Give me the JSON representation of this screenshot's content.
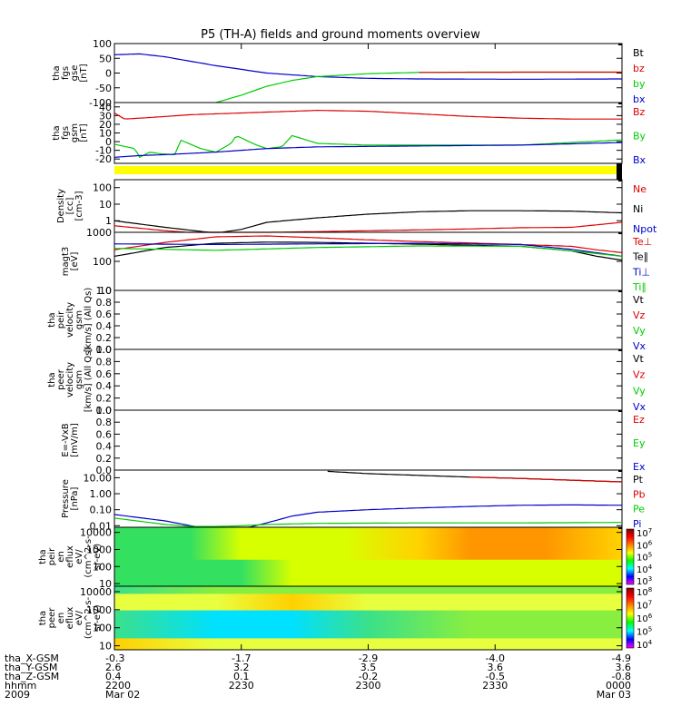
{
  "title": "P5 (TH-A) fields and ground moments overview",
  "colors": {
    "black": "#000000",
    "red": "#dd0000",
    "green": "#00cc00",
    "blue": "#0000cc",
    "yellow_bar": "#ffff00"
  },
  "chart_data": [
    {
      "id": "fgs_gse",
      "type": "line",
      "ylabel": [
        "tha",
        "fgs",
        "gse",
        "[nT]"
      ],
      "yticks": [
        "100",
        "50",
        "0",
        "-50",
        "-100"
      ],
      "ylim": [
        -100,
        100
      ],
      "log": false,
      "legend": [
        {
          "name": "Bt",
          "color": "#000000"
        },
        {
          "name": "bz",
          "color": "#dd0000"
        },
        {
          "name": "by",
          "color": "#00cc00"
        },
        {
          "name": "bx",
          "color": "#0000cc"
        }
      ],
      "series": [
        {
          "name": "bx",
          "color": "#0000cc",
          "x": [
            0,
            0.05,
            0.1,
            0.2,
            0.3,
            0.4,
            0.5,
            0.6,
            0.8,
            1.0
          ],
          "y": [
            62,
            65,
            55,
            25,
            0,
            -12,
            -18,
            -20,
            -21,
            -20
          ]
        },
        {
          "name": "by",
          "color": "#00cc00",
          "x": [
            0.2,
            0.25,
            0.3,
            0.35,
            0.4,
            0.5,
            0.6,
            0.7,
            0.8,
            1.0
          ],
          "y": [
            -100,
            -75,
            -45,
            -25,
            -12,
            -2,
            2,
            3,
            3,
            3
          ]
        },
        {
          "name": "bz",
          "color": "#dd0000",
          "x": [
            0.6,
            0.8,
            1.0
          ],
          "y": [
            2,
            3,
            3
          ]
        }
      ]
    },
    {
      "id": "fgs_gsm",
      "type": "line",
      "ylabel": [
        "tha",
        "fgs",
        "gsm",
        "[nT]"
      ],
      "yticks": [
        "40",
        "30",
        "20",
        "10",
        "0",
        "-10",
        "-20"
      ],
      "ylim": [
        -25,
        45
      ],
      "log": false,
      "legend": [
        {
          "name": "Bz",
          "color": "#dd0000"
        },
        {
          "name": "By",
          "color": "#00cc00"
        },
        {
          "name": "Bx",
          "color": "#0000cc"
        }
      ],
      "series": [
        {
          "name": "Bz",
          "color": "#dd0000",
          "x": [
            0,
            0.02,
            0.05,
            0.15,
            0.3,
            0.4,
            0.5,
            0.6,
            0.7,
            0.8,
            0.9,
            1.0
          ],
          "y": [
            33,
            26,
            27,
            31,
            34,
            36,
            35,
            32,
            29,
            27,
            26,
            26
          ]
        },
        {
          "name": "By",
          "color": "#00cc00",
          "x": [
            0,
            0.04,
            0.05,
            0.07,
            0.09,
            0.12,
            0.13,
            0.17,
            0.2,
            0.23,
            0.24,
            0.28,
            0.3,
            0.33,
            0.35,
            0.4,
            0.5,
            0.6,
            0.8,
            1.0
          ],
          "y": [
            -3,
            -8,
            -18,
            -12,
            -14,
            -15,
            2,
            -8,
            -12,
            -2,
            7,
            -4,
            -8,
            -6,
            7,
            -2,
            -4,
            -4,
            -4,
            2
          ]
        },
        {
          "name": "Bx",
          "color": "#0000cc",
          "x": [
            0,
            0.05,
            0.1,
            0.2,
            0.3,
            0.4,
            0.6,
            0.8,
            1.0
          ],
          "y": [
            -18,
            -16,
            -15,
            -12,
            -8,
            -6,
            -5,
            -4,
            -1
          ]
        }
      ]
    },
    {
      "id": "density",
      "type": "line",
      "ylabel": [
        "Density",
        "[cc]",
        "[cm-3]"
      ],
      "yticks": [
        "100",
        "10",
        "1"
      ],
      "ylim": [
        0.2,
        300
      ],
      "log": true,
      "legend": [
        {
          "name": "Ne",
          "color": "#dd0000"
        },
        {
          "name": "Ni",
          "color": "#000000"
        },
        {
          "name": "Npot",
          "color": "#0000cc"
        }
      ],
      "series": [
        {
          "name": "Ni",
          "color": "#000000",
          "x": [
            0,
            0.1,
            0.2,
            0.25,
            0.3,
            0.4,
            0.5,
            0.6,
            0.7,
            0.8,
            0.9,
            1.0
          ],
          "y": [
            1.0,
            0.4,
            0.18,
            0.3,
            0.8,
            1.5,
            2.5,
            3.5,
            4.0,
            4.0,
            3.8,
            3.0
          ]
        },
        {
          "name": "Ne",
          "color": "#dd0000",
          "x": [
            0,
            0.1,
            0.2,
            0.25,
            0.3,
            0.4,
            0.5,
            0.6,
            0.7,
            0.8,
            0.9,
            1.0
          ],
          "y": [
            0.5,
            0.25,
            0.15,
            0.18,
            0.2,
            0.22,
            0.25,
            0.28,
            0.32,
            0.38,
            0.4,
            0.8
          ]
        }
      ]
    },
    {
      "id": "magt3",
      "type": "line",
      "ylabel": [
        "magt3",
        "[eV]"
      ],
      "yticks": [
        "1000",
        "100",
        "10"
      ],
      "ylim": [
        10,
        1000
      ],
      "log": true,
      "legend": [
        {
          "name": "Te⊥",
          "color": "#dd0000"
        },
        {
          "name": "Te∥",
          "color": "#000000"
        },
        {
          "name": "Ti⊥",
          "color": "#0000cc"
        },
        {
          "name": "Ti∥",
          "color": "#00cc00"
        }
      ],
      "series": [
        {
          "name": "Te⊥",
          "color": "#dd0000",
          "x": [
            0,
            0.1,
            0.2,
            0.3,
            0.4,
            0.5,
            0.6,
            0.7,
            0.8,
            0.9,
            0.95,
            1.0
          ],
          "y": [
            250,
            450,
            700,
            750,
            650,
            550,
            480,
            430,
            380,
            330,
            250,
            200
          ]
        },
        {
          "name": "Te∥",
          "color": "#000000",
          "x": [
            0,
            0.1,
            0.2,
            0.3,
            0.4,
            0.5,
            0.6,
            0.7,
            0.8,
            0.9,
            0.95,
            1.0
          ],
          "y": [
            150,
            300,
            420,
            460,
            450,
            420,
            390,
            360,
            330,
            230,
            150,
            110
          ]
        },
        {
          "name": "Ti⊥",
          "color": "#0000cc",
          "x": [
            0,
            0.2,
            0.4,
            0.6,
            0.8,
            0.9,
            1.0
          ],
          "y": [
            400,
            380,
            400,
            420,
            380,
            260,
            150
          ]
        },
        {
          "name": "Ti∥",
          "color": "#00cc00",
          "x": [
            0,
            0.2,
            0.4,
            0.6,
            0.8,
            0.9,
            1.0
          ],
          "y": [
            280,
            240,
            300,
            340,
            330,
            230,
            150
          ]
        }
      ]
    },
    {
      "id": "peir_velocity",
      "type": "line",
      "ylabel": [
        "tha",
        "peir",
        "velocity",
        "gsm",
        "[km/s] (All Qs)"
      ],
      "yticks": [
        "1.0",
        "0.8",
        "0.6",
        "0.4",
        "0.2",
        "0.0"
      ],
      "ylim": [
        0,
        1
      ],
      "log": false,
      "legend": [
        {
          "name": "Vt",
          "color": "#000000"
        },
        {
          "name": "Vz",
          "color": "#dd0000"
        },
        {
          "name": "Vy",
          "color": "#00cc00"
        },
        {
          "name": "Vx",
          "color": "#0000cc"
        }
      ],
      "series": []
    },
    {
      "id": "peer_velocity",
      "type": "line",
      "ylabel": [
        "tha",
        "peer",
        "velocity",
        "gsm",
        "[km/s] (All Qs)"
      ],
      "yticks": [
        "1.0",
        "0.8",
        "0.6",
        "0.4",
        "0.2",
        "0.0"
      ],
      "ylim": [
        0,
        1
      ],
      "log": false,
      "legend": [
        {
          "name": "Vt",
          "color": "#000000"
        },
        {
          "name": "Vz",
          "color": "#dd0000"
        },
        {
          "name": "Vy",
          "color": "#00cc00"
        },
        {
          "name": "Vx",
          "color": "#0000cc"
        }
      ],
      "series": []
    },
    {
      "id": "efield",
      "type": "line",
      "ylabel": [
        "E=-VxB",
        "[mV/m]"
      ],
      "yticks": [
        "1.0",
        "0.8",
        "0.6",
        "0.4",
        "0.2",
        "0.0"
      ],
      "ylim": [
        0,
        1
      ],
      "log": false,
      "legend": [
        {
          "name": "Ez",
          "color": "#dd0000"
        },
        {
          "name": "Ey",
          "color": "#00cc00"
        },
        {
          "name": "Ex",
          "color": "#0000cc"
        }
      ],
      "series": []
    },
    {
      "id": "pressure",
      "type": "line",
      "ylabel": [
        "Pressure",
        "[nPa]"
      ],
      "yticks": [
        "10.00",
        "1.00",
        "0.10",
        "0.01"
      ],
      "ylim": [
        0.008,
        30
      ],
      "log": true,
      "legend": [
        {
          "name": "Pt",
          "color": "#000000"
        },
        {
          "name": "Pb",
          "color": "#dd0000"
        },
        {
          "name": "Pe",
          "color": "#00cc00"
        },
        {
          "name": "Pi",
          "color": "#0000cc"
        }
      ],
      "series": [
        {
          "name": "Pt",
          "color": "#000000",
          "x": [
            0.42,
            0.5,
            0.6,
            0.7,
            0.8,
            0.9,
            1.0
          ],
          "y": [
            25,
            18,
            14,
            11,
            9,
            7,
            5.5
          ]
        },
        {
          "name": "Pb",
          "color": "#dd0000",
          "x": [
            0.7,
            0.8,
            0.9,
            1.0
          ],
          "y": [
            11,
            9,
            7,
            5.5
          ]
        },
        {
          "name": "Pi",
          "color": "#0000cc",
          "x": [
            0,
            0.1,
            0.15,
            0.2,
            0.25,
            0.3,
            0.35,
            0.4,
            0.5,
            0.6,
            0.7,
            0.8,
            0.9,
            1.0
          ],
          "y": [
            0.05,
            0.02,
            0.01,
            0.006,
            0.006,
            0.015,
            0.04,
            0.07,
            0.1,
            0.13,
            0.16,
            0.19,
            0.2,
            0.19
          ]
        },
        {
          "name": "Pe",
          "color": "#00cc00",
          "x": [
            0,
            0.1,
            0.15,
            0.2,
            0.25,
            0.3,
            0.4,
            0.6,
            0.8,
            1.0
          ],
          "y": [
            0.03,
            0.012,
            0.009,
            0.009,
            0.01,
            0.012,
            0.014,
            0.015,
            0.015,
            0.016
          ]
        }
      ]
    },
    {
      "id": "peir_en_eflux",
      "type": "heatmap",
      "ylabel": [
        "tha",
        "peir",
        "en",
        "eflux",
        "eV/",
        "(cm^2-s-",
        "sr-eV)"
      ],
      "yticks": [
        "10000",
        "1000",
        "100",
        "10"
      ],
      "ylim": [
        7,
        20000
      ],
      "log": true,
      "colorbar_ticks": [
        "10^7",
        "10^6",
        "10^5",
        "10^4",
        "10^3"
      ],
      "colors": [
        "#1a6aff",
        "#00d8ff",
        "#34e060",
        "#d8ff00",
        "#ffd200",
        "#ff9600"
      ],
      "x": [
        0,
        0.15,
        0.25,
        0.35,
        0.45,
        0.6,
        0.7,
        0.85,
        1.0
      ],
      "upper_level": [
        2,
        2,
        3,
        3,
        3,
        4,
        5,
        5,
        4
      ],
      "lower_level": [
        2,
        2,
        2,
        3,
        3,
        3,
        3,
        3,
        3
      ]
    },
    {
      "id": "peer_en_eflux",
      "type": "heatmap",
      "ylabel": [
        "tha",
        "peer",
        "en",
        "eflux",
        "eV/",
        "(cm^2-s-",
        "sr-eV)"
      ],
      "yticks": [
        "10000",
        "1000",
        "100",
        "10"
      ],
      "ylim": [
        6,
        20000
      ],
      "log": true,
      "colorbar_ticks": [
        "10^8",
        "10^7",
        "10^6",
        "10^5",
        "10^4"
      ],
      "colors": [
        "#4aa8ff",
        "#00e0ff",
        "#3be08a",
        "#88ee40",
        "#e8ff40",
        "#ffd000",
        "#ff8c00"
      ],
      "x": [
        0,
        0.2,
        0.35,
        0.5,
        0.7,
        0.85,
        1.0
      ],
      "top_level": [
        2,
        3,
        3,
        3,
        3,
        3,
        3
      ],
      "high_level": [
        4,
        4,
        5,
        4,
        4,
        4,
        4
      ],
      "mid_level": [
        2,
        1,
        1,
        2,
        3,
        3,
        3
      ],
      "low_level": [
        5,
        4,
        4,
        4,
        4,
        4,
        4
      ]
    }
  ],
  "xaxis": {
    "ticks": [
      "-0.3",
      "-1.7",
      "-2.9",
      "-4.0",
      "-4.9"
    ],
    "rows": [
      {
        "label": "tha_X-GSM",
        "values": [
          "-0.3",
          "-1.7",
          "-2.9",
          "-4.0",
          "-4.9"
        ]
      },
      {
        "label": "tha_Y-GSM",
        "values": [
          "2.6",
          "3.2",
          "3.5",
          "3.6",
          "3.6"
        ]
      },
      {
        "label": "tha_Z-GSM",
        "values": [
          "0.4",
          "0.1",
          "-0.2",
          "-0.5",
          "-0.8"
        ]
      },
      {
        "label": "hhmm",
        "values": [
          "2200",
          "2230",
          "2300",
          "2330",
          "0000"
        ]
      },
      {
        "label": "2009",
        "values": [
          "Mar 02",
          "",
          "",
          "",
          "Mar 03"
        ]
      }
    ]
  }
}
